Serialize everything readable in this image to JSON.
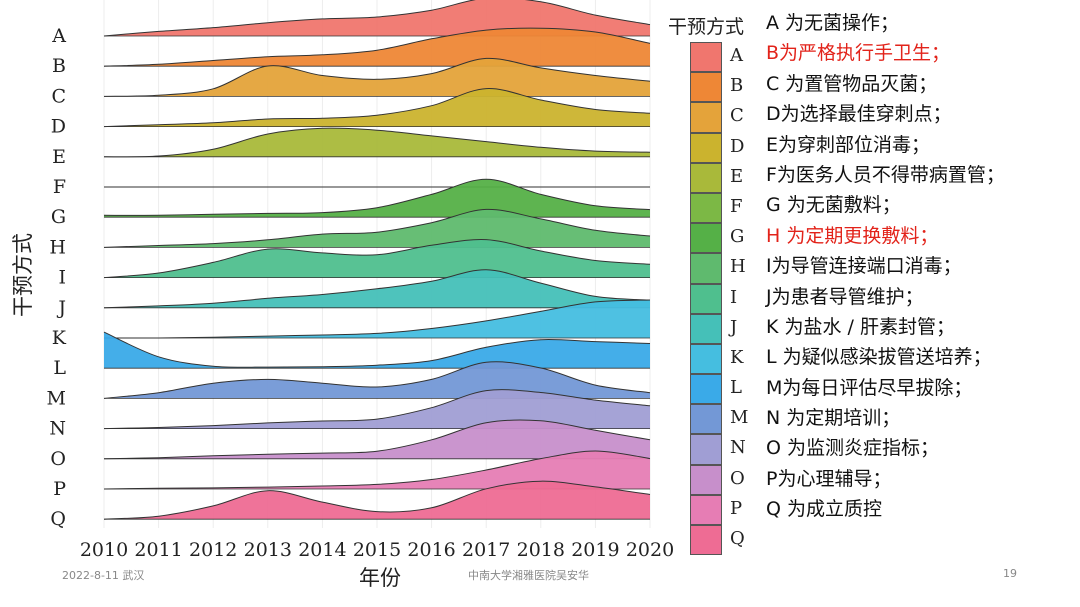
{
  "chart_data": {
    "type": "ridgeline",
    "xlabel": "年份",
    "ylabel": "干预方式",
    "xlim": [
      2010,
      2020
    ],
    "x_ticks": [
      2010,
      2011,
      2012,
      2013,
      2014,
      2015,
      2016,
      2017,
      2018,
      2019,
      2020
    ],
    "x": [
      2010,
      2011,
      2012,
      2013,
      2014,
      2015,
      2016,
      2017,
      2018,
      2019,
      2020
    ],
    "series": [
      {
        "name": "A",
        "color": "#F0766E",
        "values": [
          0,
          0.12,
          0.22,
          0.35,
          0.45,
          0.5,
          0.68,
          1.0,
          0.9,
          0.55,
          0.3
        ]
      },
      {
        "name": "B",
        "color": "#EE8736",
        "values": [
          0,
          0.05,
          0.15,
          0.25,
          0.3,
          0.42,
          0.72,
          0.95,
          1.0,
          0.9,
          0.6
        ]
      },
      {
        "name": "C",
        "color": "#E4A33A",
        "values": [
          0,
          0.03,
          0.2,
          0.8,
          0.55,
          0.45,
          0.6,
          1.0,
          0.75,
          0.55,
          0.4
        ]
      },
      {
        "name": "D",
        "color": "#CBB32E",
        "values": [
          0,
          0.05,
          0.1,
          0.2,
          0.22,
          0.3,
          0.55,
          1.0,
          0.7,
          0.45,
          0.35
        ]
      },
      {
        "name": "E",
        "color": "#A9B93A",
        "values": [
          0,
          0.02,
          0.2,
          0.6,
          0.75,
          0.7,
          0.55,
          0.4,
          0.25,
          0.15,
          0.12
        ]
      },
      {
        "name": "F",
        "color": "#7CB845",
        "values": [
          0,
          0.0,
          0.0,
          0.0,
          0.0,
          0.0,
          0.0,
          0.0,
          0.0,
          0.0,
          0.0
        ]
      },
      {
        "name": "G",
        "color": "#55B047",
        "values": [
          0.05,
          0.05,
          0.08,
          0.1,
          0.12,
          0.25,
          0.6,
          1.0,
          0.6,
          0.3,
          0.2
        ]
      },
      {
        "name": "H",
        "color": "#5FBA6E",
        "values": [
          0,
          0.05,
          0.1,
          0.2,
          0.35,
          0.4,
          0.65,
          1.0,
          0.75,
          0.45,
          0.3
        ]
      },
      {
        "name": "I",
        "color": "#4FBF8E",
        "values": [
          0,
          0.12,
          0.4,
          0.75,
          0.65,
          0.6,
          0.85,
          1.0,
          0.7,
          0.45,
          0.35
        ]
      },
      {
        "name": "J",
        "color": "#45C0B8",
        "values": [
          0,
          0.05,
          0.12,
          0.25,
          0.35,
          0.5,
          0.7,
          1.0,
          0.65,
          0.3,
          0.2
        ]
      },
      {
        "name": "K",
        "color": "#45BEE0",
        "values": [
          0,
          0.0,
          0.02,
          0.05,
          0.08,
          0.12,
          0.25,
          0.45,
          0.7,
          0.95,
          1.0
        ]
      },
      {
        "name": "L",
        "color": "#3AAAE8",
        "values": [
          0.95,
          0.3,
          0.05,
          0.03,
          0.04,
          0.08,
          0.2,
          0.55,
          0.75,
          0.7,
          0.65
        ]
      },
      {
        "name": "M",
        "color": "#7398D6",
        "values": [
          0,
          0.15,
          0.4,
          0.5,
          0.4,
          0.3,
          0.5,
          0.95,
          0.8,
          0.35,
          0.15
        ]
      },
      {
        "name": "N",
        "color": "#A09ED4",
        "values": [
          0,
          0.03,
          0.08,
          0.15,
          0.2,
          0.25,
          0.55,
          1.0,
          0.95,
          0.75,
          0.6
        ]
      },
      {
        "name": "O",
        "color": "#C78FCB",
        "values": [
          0,
          0.03,
          0.08,
          0.12,
          0.15,
          0.2,
          0.5,
          0.95,
          1.0,
          0.75,
          0.5
        ]
      },
      {
        "name": "P",
        "color": "#E67DB4",
        "values": [
          0,
          0.02,
          0.03,
          0.05,
          0.08,
          0.12,
          0.25,
          0.5,
          0.8,
          1.0,
          0.8
        ]
      },
      {
        "name": "Q",
        "color": "#EE6C94",
        "values": [
          0,
          0.08,
          0.35,
          0.75,
          0.45,
          0.2,
          0.3,
          0.8,
          1.0,
          0.85,
          0.65
        ]
      }
    ],
    "legend": {
      "title": "干预方式",
      "placement": "right"
    },
    "grid": true
  },
  "notes": [
    {
      "text": "A 为无菌操作；",
      "color": "#111111"
    },
    {
      "text": "B为严格执行手卫生；",
      "color": "#e2231a"
    },
    {
      "text": "C 为置管物品灭菌；",
      "color": "#111111"
    },
    {
      "text": "D为选择最佳穿刺点；",
      "color": "#111111"
    },
    {
      "text": "E为穿刺部位消毒；",
      "color": "#111111"
    },
    {
      "text": "F为医务人员不得带病置管；",
      "color": "#111111"
    },
    {
      "text": "G 为无菌敷料；",
      "color": "#111111"
    },
    {
      "text": "H 为定期更换敷料；",
      "color": "#e2231a"
    },
    {
      "text": "I为导管连接端口消毒；",
      "color": "#111111"
    },
    {
      "text": "J为患者导管维护；",
      "color": "#111111"
    },
    {
      "text": "K 为盐水 / 肝素封管；",
      "color": "#111111"
    },
    {
      "text": "L 为疑似感染拔管送培养；",
      "color": "#111111"
    },
    {
      "text": "M为每日评估尽早拔除；",
      "color": "#111111"
    },
    {
      "text": "N 为定期培训；",
      "color": "#111111"
    },
    {
      "text": "O 为监测炎症指标；",
      "color": "#111111"
    },
    {
      "text": "P为心理辅导；",
      "color": "#111111"
    },
    {
      "text": "Q 为成立质控",
      "color": "#111111"
    }
  ],
  "footer": {
    "date_place": "2022-8-11 武汉",
    "organization": "中南大学湘雅医院吴安华",
    "page_number": "19"
  }
}
